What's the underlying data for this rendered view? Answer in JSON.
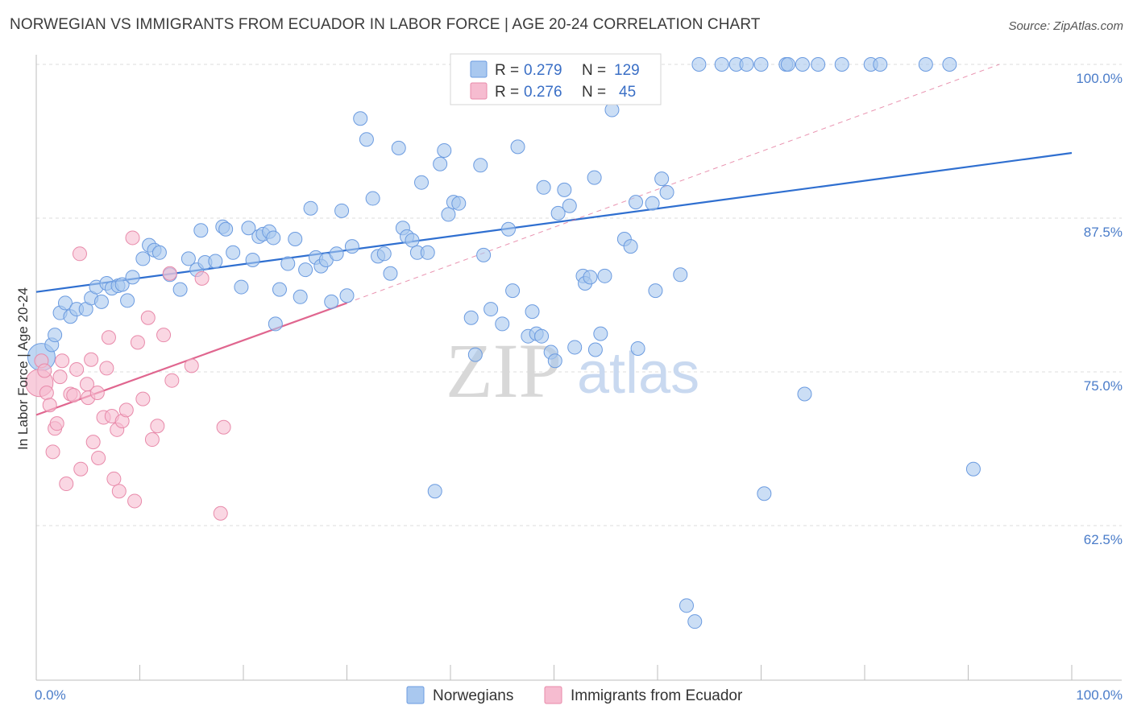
{
  "title": "NORWEGIAN VS IMMIGRANTS FROM ECUADOR IN LABOR FORCE | AGE 20-24 CORRELATION CHART",
  "source": "Source: ZipAtlas.com",
  "watermark": {
    "zip": "ZIP",
    "atlas": "atlas"
  },
  "colors": {
    "blue_fill": "#a9c8ef",
    "blue_stroke": "#6b9be0",
    "blue_line": "#2f6fd0",
    "pink_fill": "#f6bcd0",
    "pink_stroke": "#e88aaa",
    "pink_line": "#e0668f",
    "grid": "#dcdcdc",
    "axis_text": "#4a7cc9"
  },
  "chart_data": {
    "type": "scatter",
    "xlabel": "",
    "ylabel": "In Labor Force | Age 20-24",
    "xlim": [
      0,
      100
    ],
    "ylim": [
      50,
      102
    ],
    "x_tick_labels": {
      "left": "0.0%",
      "right": "100.0%"
    },
    "y_ticks": [
      {
        "value": 100.0,
        "label": "100.0%"
      },
      {
        "value": 87.5,
        "label": "87.5%"
      },
      {
        "value": 75.0,
        "label": "75.0%"
      },
      {
        "value": 62.5,
        "label": "62.5%"
      }
    ],
    "legend": [
      {
        "name": "Norwegians",
        "R": "0.279",
        "N": "129"
      },
      {
        "name": "Immigrants from Ecuador",
        "R": "0.276",
        "N": "45"
      }
    ],
    "legend_labels": {
      "r": "R =",
      "n": "N ="
    },
    "series": [
      {
        "name": "Norwegians",
        "trend": {
          "x0": 0,
          "y0": 81.5,
          "x1": 100,
          "y1": 92.8
        },
        "points": [
          [
            0.5,
            76.2,
            "L"
          ],
          [
            1.5,
            77.2
          ],
          [
            1.8,
            78.0
          ],
          [
            2.3,
            79.8
          ],
          [
            2.8,
            80.6
          ],
          [
            3.3,
            79.5
          ],
          [
            3.9,
            80.1
          ],
          [
            4.8,
            80.1
          ],
          [
            5.3,
            81.0
          ],
          [
            5.8,
            81.9
          ],
          [
            6.3,
            80.7
          ],
          [
            6.8,
            82.2
          ],
          [
            7.3,
            81.8
          ],
          [
            7.9,
            82.0
          ],
          [
            8.3,
            82.1
          ],
          [
            8.8,
            80.8
          ],
          [
            9.3,
            82.7
          ],
          [
            10.3,
            84.2
          ],
          [
            10.9,
            85.3
          ],
          [
            11.4,
            84.9
          ],
          [
            11.9,
            84.7
          ],
          [
            12.9,
            82.9
          ],
          [
            13.9,
            81.7
          ],
          [
            14.7,
            84.2
          ],
          [
            15.5,
            83.3
          ],
          [
            15.9,
            86.5
          ],
          [
            16.3,
            83.9
          ],
          [
            17.3,
            84.0
          ],
          [
            18.0,
            86.8
          ],
          [
            18.3,
            86.6
          ],
          [
            19.0,
            84.7
          ],
          [
            19.8,
            81.9
          ],
          [
            20.5,
            86.7
          ],
          [
            20.9,
            84.1
          ],
          [
            21.5,
            86.0
          ],
          [
            21.9,
            86.2
          ],
          [
            22.5,
            86.4
          ],
          [
            22.9,
            85.9
          ],
          [
            23.1,
            78.9
          ],
          [
            23.5,
            81.7
          ],
          [
            24.3,
            83.8
          ],
          [
            25.0,
            85.8
          ],
          [
            25.5,
            81.1
          ],
          [
            26.0,
            83.3
          ],
          [
            26.5,
            88.3
          ],
          [
            27.0,
            84.3
          ],
          [
            27.5,
            83.6
          ],
          [
            28.0,
            84.1
          ],
          [
            28.5,
            80.7
          ],
          [
            29.0,
            84.6
          ],
          [
            29.5,
            88.1
          ],
          [
            30.0,
            81.2
          ],
          [
            30.5,
            85.2
          ],
          [
            31.3,
            95.6
          ],
          [
            31.9,
            93.9
          ],
          [
            32.5,
            89.1
          ],
          [
            33.0,
            84.4
          ],
          [
            33.6,
            84.6
          ],
          [
            34.2,
            83.0
          ],
          [
            35.0,
            93.2
          ],
          [
            35.4,
            86.7
          ],
          [
            35.8,
            86.0
          ],
          [
            36.3,
            85.7
          ],
          [
            36.8,
            84.7
          ],
          [
            37.2,
            90.4
          ],
          [
            37.8,
            84.7
          ],
          [
            38.5,
            65.3
          ],
          [
            39.0,
            91.9
          ],
          [
            39.4,
            93.0
          ],
          [
            39.8,
            87.8
          ],
          [
            40.3,
            88.8
          ],
          [
            40.8,
            88.7
          ],
          [
            42.0,
            79.4
          ],
          [
            42.4,
            76.4
          ],
          [
            42.9,
            91.8
          ],
          [
            43.2,
            84.5
          ],
          [
            43.9,
            80.1
          ],
          [
            45.0,
            78.9
          ],
          [
            45.6,
            86.6
          ],
          [
            46.0,
            81.6
          ],
          [
            46.5,
            93.3
          ],
          [
            47.5,
            77.9
          ],
          [
            47.9,
            79.9
          ],
          [
            48.3,
            78.1
          ],
          [
            48.8,
            77.9
          ],
          [
            49.0,
            90.0
          ],
          [
            49.7,
            76.6
          ],
          [
            50.1,
            75.9
          ],
          [
            50.4,
            87.9
          ],
          [
            51.0,
            89.8
          ],
          [
            51.5,
            88.5
          ],
          [
            52.0,
            77.0
          ],
          [
            52.8,
            82.8
          ],
          [
            53.0,
            82.2
          ],
          [
            53.5,
            82.7
          ],
          [
            53.9,
            90.8
          ],
          [
            54.0,
            76.8
          ],
          [
            54.5,
            78.1
          ],
          [
            54.9,
            82.8
          ],
          [
            55.6,
            96.3
          ],
          [
            56.3,
            100.0
          ],
          [
            56.8,
            85.8
          ],
          [
            57.4,
            85.2
          ],
          [
            57.9,
            88.8
          ],
          [
            58.1,
            76.9
          ],
          [
            59.5,
            88.7
          ],
          [
            59.8,
            81.6
          ],
          [
            60.4,
            90.7
          ],
          [
            60.9,
            89.6
          ],
          [
            62.2,
            82.9
          ],
          [
            62.8,
            56.0
          ],
          [
            64.0,
            100.0
          ],
          [
            66.2,
            100.0
          ],
          [
            67.6,
            100.0
          ],
          [
            68.6,
            100.0
          ],
          [
            70.0,
            100.0
          ],
          [
            70.3,
            65.1
          ],
          [
            72.4,
            100.0
          ],
          [
            72.6,
            100.0
          ],
          [
            74.0,
            100.0
          ],
          [
            74.2,
            73.2
          ],
          [
            75.5,
            100.0
          ],
          [
            77.8,
            100.0
          ],
          [
            80.6,
            100.0
          ],
          [
            81.5,
            100.0
          ],
          [
            85.9,
            100.0
          ],
          [
            88.2,
            100.0
          ],
          [
            90.5,
            67.1
          ],
          [
            63.6,
            54.7
          ]
        ]
      },
      {
        "name": "Immigrants from Ecuador",
        "trend": {
          "x0": 0,
          "y0": 71.5,
          "x1": 30,
          "y1": 80.6
        },
        "trend_ext": {
          "x0": 30,
          "y0": 80.6,
          "x1": 93,
          "y1": 100.0
        },
        "points": [
          [
            0.3,
            74.1,
            "L"
          ],
          [
            0.5,
            75.9
          ],
          [
            0.8,
            75.1
          ],
          [
            1.0,
            73.3
          ],
          [
            1.3,
            72.3
          ],
          [
            1.6,
            68.5
          ],
          [
            1.8,
            70.4
          ],
          [
            2.0,
            70.8
          ],
          [
            2.3,
            74.6
          ],
          [
            2.5,
            75.9
          ],
          [
            2.9,
            65.9
          ],
          [
            3.3,
            73.2
          ],
          [
            3.6,
            73.1
          ],
          [
            3.9,
            75.2
          ],
          [
            4.2,
            84.6
          ],
          [
            4.3,
            67.1
          ],
          [
            4.9,
            74.0
          ],
          [
            5.0,
            72.9
          ],
          [
            5.3,
            76.0
          ],
          [
            5.5,
            69.3
          ],
          [
            5.9,
            73.3
          ],
          [
            6.0,
            68.0
          ],
          [
            6.5,
            71.3
          ],
          [
            6.8,
            75.3
          ],
          [
            7.0,
            77.8
          ],
          [
            7.3,
            71.4
          ],
          [
            7.5,
            66.3
          ],
          [
            7.8,
            70.3
          ],
          [
            8.0,
            65.3
          ],
          [
            8.3,
            71.0
          ],
          [
            8.7,
            71.9
          ],
          [
            9.3,
            85.9
          ],
          [
            9.5,
            64.5
          ],
          [
            9.8,
            77.4
          ],
          [
            10.3,
            72.8
          ],
          [
            10.8,
            79.4
          ],
          [
            11.2,
            69.5
          ],
          [
            11.7,
            70.6
          ],
          [
            12.3,
            78.0
          ],
          [
            12.9,
            83.0
          ],
          [
            13.1,
            74.3
          ],
          [
            15.0,
            75.5
          ],
          [
            16.0,
            82.6
          ],
          [
            18.1,
            70.5
          ],
          [
            17.8,
            63.5
          ]
        ]
      }
    ]
  }
}
